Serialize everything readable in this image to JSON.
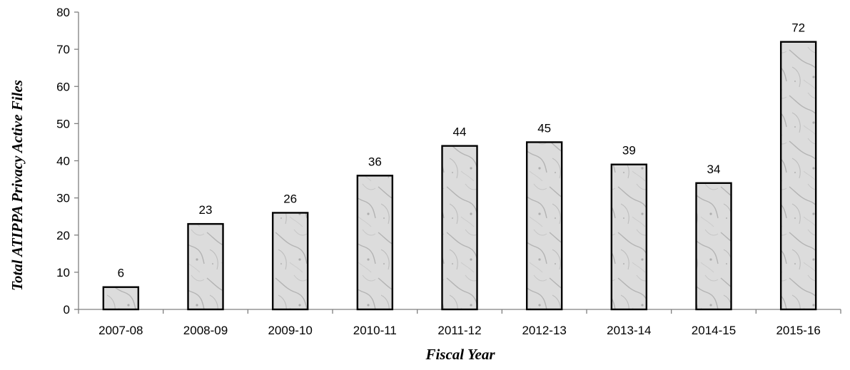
{
  "chart_data": {
    "type": "bar",
    "title": "",
    "xlabel": "Fiscal Year",
    "ylabel": "Total ATIPPA Privacy Active Files",
    "categories": [
      "2007-08",
      "2008-09",
      "2009-10",
      "2010-11",
      "2011-12",
      "2012-13",
      "2013-14",
      "2014-15",
      "2015-16"
    ],
    "values": [
      6,
      23,
      26,
      36,
      44,
      45,
      39,
      34,
      72
    ],
    "ylim": [
      0,
      80
    ],
    "yticks": [
      0,
      10,
      20,
      30,
      40,
      50,
      60,
      70,
      80
    ],
    "grid": false,
    "legend": "none",
    "data_labels": true,
    "bar_fill": "light gray marble texture",
    "bar_outline": "#000000"
  }
}
